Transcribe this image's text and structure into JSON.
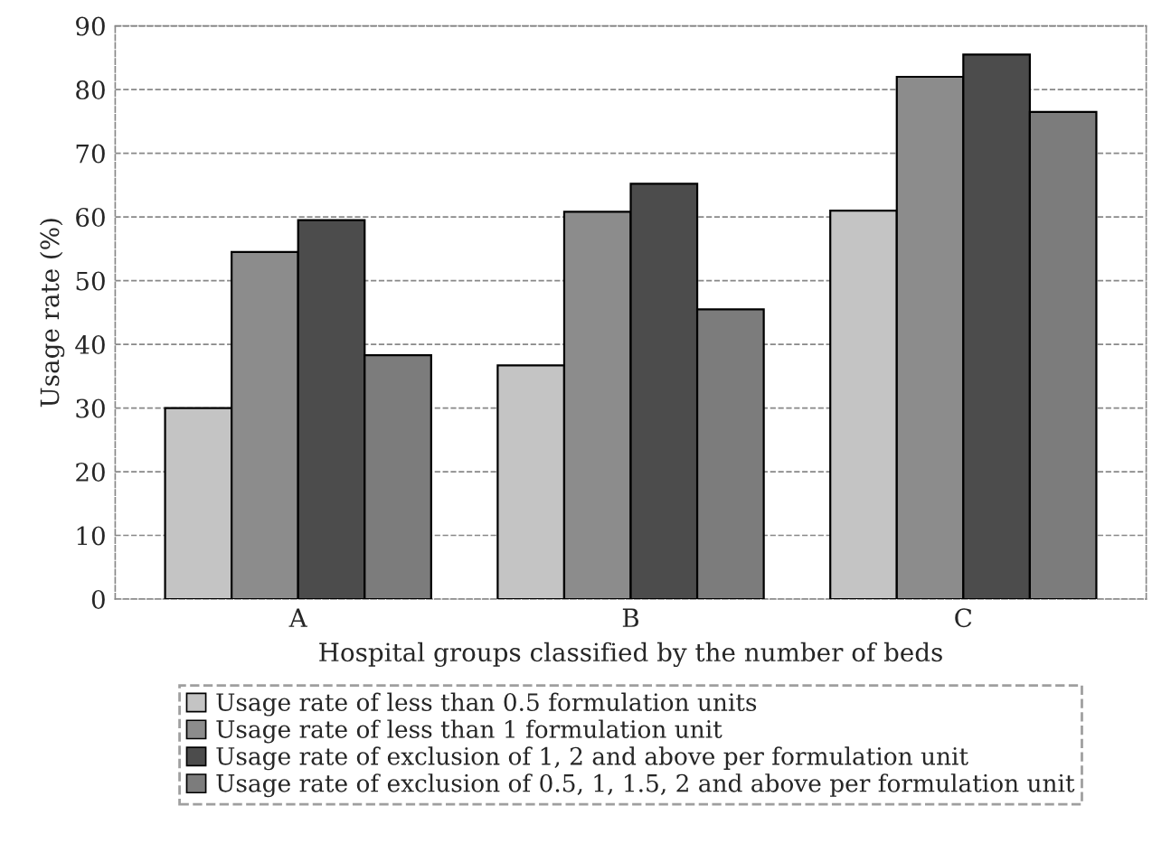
{
  "chart_data": {
    "type": "bar",
    "xlabel": "Hospital groups classified by the number of beds",
    "ylabel": "Usage rate (%)",
    "categories": [
      "A",
      "B",
      "C"
    ],
    "series": [
      {
        "name": "Usage rate of less than 0.5 formulation units",
        "color": "#c4c4c4",
        "values": [
          30,
          36.7,
          61
        ]
      },
      {
        "name": "Usage rate of less than 1 formulation unit",
        "color": "#8c8c8c",
        "values": [
          54.5,
          60.8,
          82
        ]
      },
      {
        "name": "Usage rate of exclusion of 1, 2 and above per formulation unit",
        "color": "#4c4c4c",
        "values": [
          59.5,
          65.2,
          85.5
        ]
      },
      {
        "name": "Usage rate of exclusion of 0.5, 1, 1.5, 2 and above per formulation unit",
        "color": "#7c7c7c",
        "values": [
          38.3,
          45.5,
          76.5
        ]
      }
    ],
    "ylim": [
      0,
      90
    ],
    "yticks": [
      0,
      10,
      20,
      30,
      40,
      50,
      60,
      70,
      80,
      90
    ],
    "grid": "y",
    "legend": "bottom"
  }
}
